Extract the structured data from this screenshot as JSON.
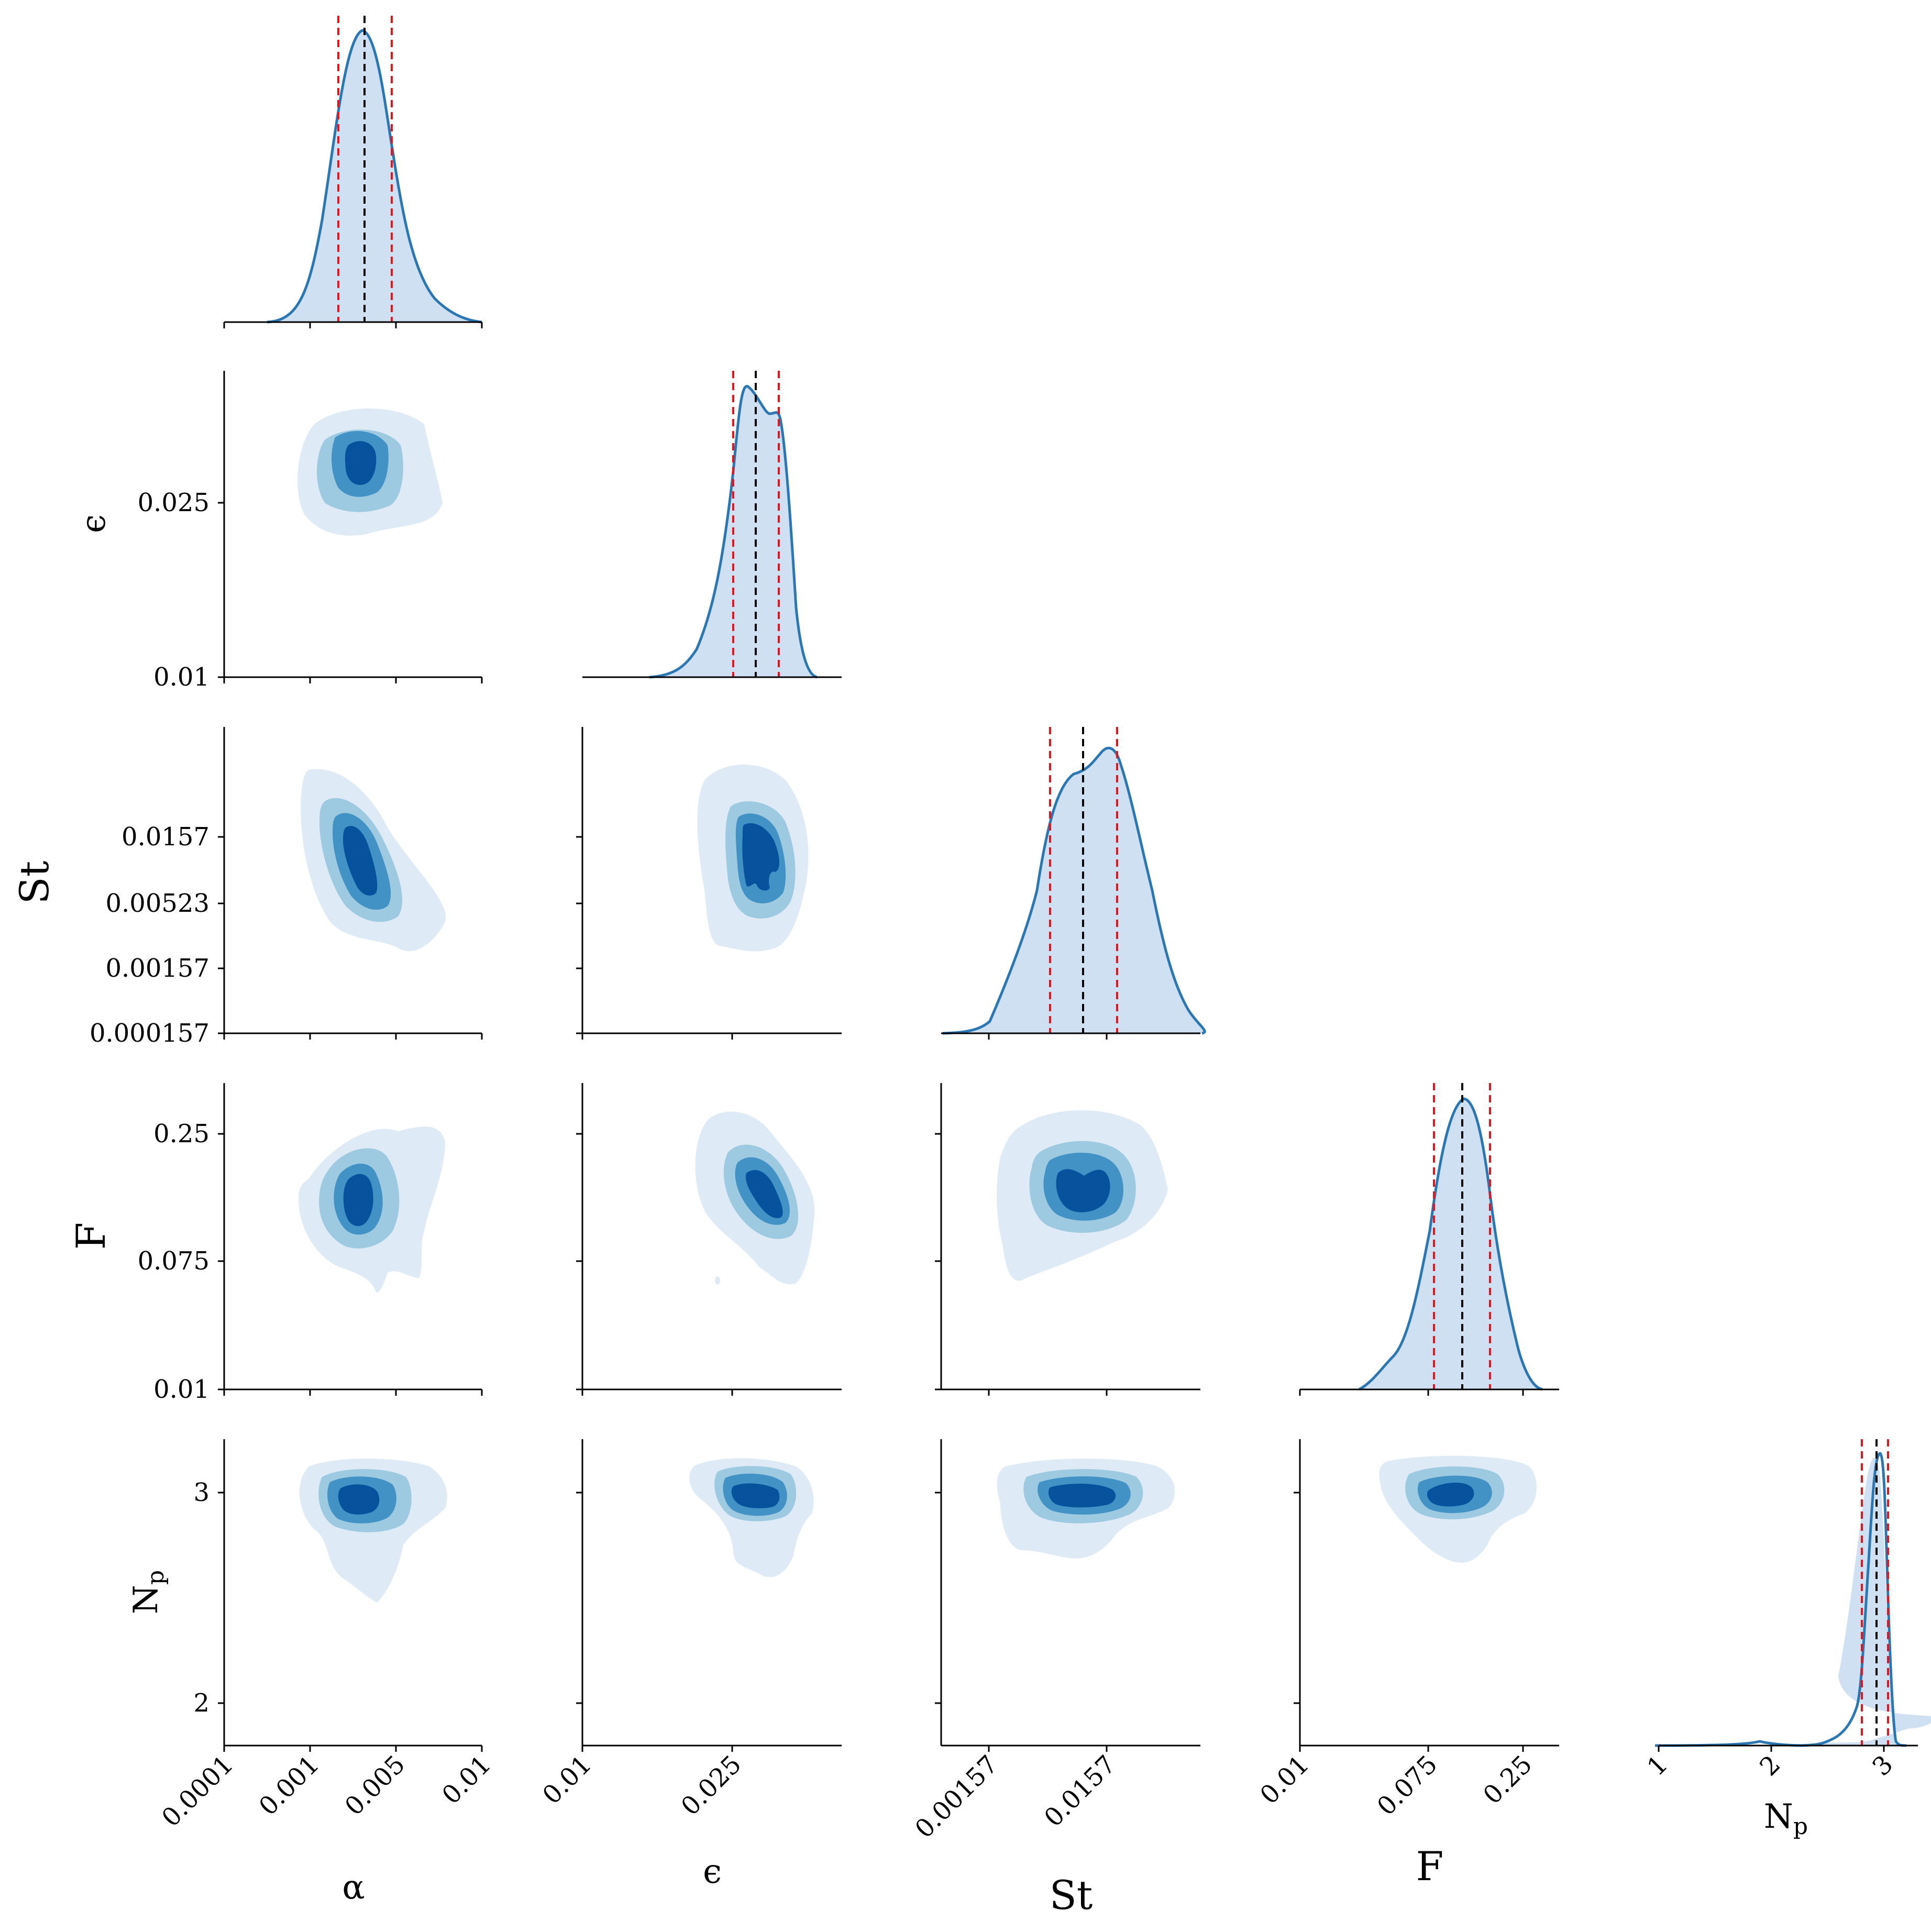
{
  "chart_data": {
    "type": "corner",
    "description_title": "",
    "parameters": [
      {
        "key": "alpha",
        "label": "α",
        "label_html": "α",
        "ticks": [
          "0.0001",
          "0.001",
          "0.005",
          "0.01"
        ],
        "diag_median": 0.55,
        "diag_lo": 0.45,
        "diag_hi": 0.65
      },
      {
        "key": "epsilon",
        "label": "ϵ",
        "ticks_x": [
          "0.01",
          "0.025"
        ],
        "ticks_y": [
          "0.01",
          "0.025"
        ],
        "diag_median": 0.67,
        "diag_lo": 0.58,
        "diag_hi": 0.76
      },
      {
        "key": "St",
        "label": "St",
        "ticks_x": [
          "0.00157",
          "0.0157"
        ],
        "ticks_y": [
          "0.000157",
          "0.00157",
          "0.00523",
          "0.0157"
        ],
        "diag_median": 0.54,
        "diag_lo": 0.42,
        "diag_hi": 0.67
      },
      {
        "key": "F",
        "label": "F",
        "ticks_x": [
          "0.01",
          "0.075",
          "0.25"
        ],
        "ticks_y": [
          "0.01",
          "0.075",
          "0.25"
        ],
        "diag_median": 0.62,
        "diag_lo": 0.52,
        "diag_hi": 0.73
      },
      {
        "key": "Np",
        "label": "N",
        "label_sub": "p",
        "ticks_x": [
          "1",
          "2",
          "3"
        ],
        "ticks_y": [
          "2",
          "3"
        ],
        "diag_median": 0.83,
        "diag_lo": 0.77,
        "diag_hi": 0.88
      }
    ],
    "series_color": "#2a77b4",
    "median_line_color": "#000000",
    "interval_line_color": "#e8141c",
    "contour_colors": [
      "#deebf7",
      "#9ecae1",
      "#4292c6",
      "#08519c"
    ]
  }
}
